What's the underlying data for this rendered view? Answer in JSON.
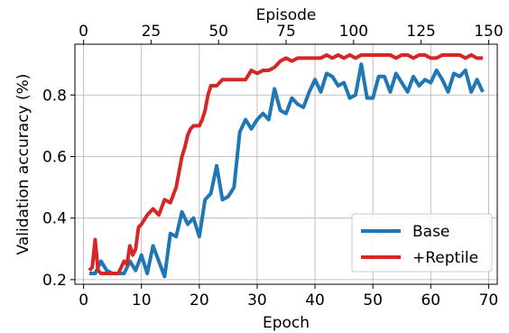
{
  "chart_data": {
    "type": "line",
    "xlabel": "Epoch",
    "ylabel": "Validation accuracy (%)",
    "x2label": "Episode",
    "xlim": [
      -1.5,
      71.5
    ],
    "ylim": [
      0.185,
      0.965
    ],
    "x2lim": [
      -3.2,
      153.2
    ],
    "xticks": [
      0,
      10,
      20,
      30,
      40,
      50,
      60,
      70
    ],
    "yticks": [
      0.2,
      0.4,
      0.6,
      0.8
    ],
    "x2ticks": [
      0,
      25,
      50,
      75,
      100,
      125,
      150
    ],
    "grid": true,
    "legend_position": "lower-right",
    "series": [
      {
        "name": "Base",
        "color": "#1f77b4",
        "x": [
          1,
          2,
          3,
          4,
          5,
          6,
          7,
          8,
          9,
          10,
          11,
          12,
          13,
          14,
          15,
          16,
          17,
          18,
          19,
          20,
          21,
          22,
          23,
          24,
          25,
          26,
          27,
          28,
          29,
          30,
          31,
          32,
          33,
          34,
          35,
          36,
          37,
          38,
          39,
          40,
          41,
          42,
          43,
          44,
          45,
          46,
          47,
          48,
          49,
          50,
          51,
          52,
          53,
          54,
          55,
          56,
          57,
          58,
          59,
          60,
          61,
          62,
          63,
          64,
          65,
          66,
          67,
          68,
          69
        ],
        "values": [
          0.22,
          0.22,
          0.26,
          0.23,
          0.22,
          0.22,
          0.22,
          0.26,
          0.23,
          0.28,
          0.22,
          0.31,
          0.26,
          0.21,
          0.35,
          0.34,
          0.42,
          0.38,
          0.4,
          0.34,
          0.46,
          0.48,
          0.57,
          0.46,
          0.47,
          0.5,
          0.68,
          0.72,
          0.69,
          0.72,
          0.74,
          0.72,
          0.82,
          0.75,
          0.74,
          0.79,
          0.77,
          0.76,
          0.81,
          0.85,
          0.81,
          0.87,
          0.86,
          0.83,
          0.84,
          0.79,
          0.8,
          0.9,
          0.79,
          0.79,
          0.86,
          0.86,
          0.81,
          0.87,
          0.84,
          0.81,
          0.86,
          0.83,
          0.85,
          0.84,
          0.88,
          0.85,
          0.81,
          0.87,
          0.86,
          0.88,
          0.81,
          0.85,
          0.81
        ]
      },
      {
        "name": "+Reptile",
        "color": "#d62728",
        "x": [
          1,
          1.5,
          2,
          2.5,
          3,
          4,
          5,
          6,
          7,
          7.5,
          8,
          8.5,
          9,
          9.5,
          10,
          11,
          12,
          13,
          14,
          15,
          16,
          17,
          17.5,
          18,
          18.5,
          19,
          20,
          20.5,
          21,
          21.5,
          22,
          23,
          24,
          25,
          26,
          27,
          28,
          29,
          30,
          31,
          32,
          33,
          34,
          35,
          36,
          37,
          38,
          39,
          40,
          41,
          42,
          43,
          44,
          45,
          46,
          47,
          48,
          49,
          50,
          51,
          52,
          53,
          54,
          55,
          56,
          57,
          58,
          59,
          60,
          61,
          62,
          63,
          64,
          65,
          66,
          67,
          68,
          69
        ],
        "values": [
          0.23,
          0.24,
          0.33,
          0.23,
          0.22,
          0.22,
          0.22,
          0.22,
          0.26,
          0.25,
          0.31,
          0.28,
          0.3,
          0.37,
          0.38,
          0.41,
          0.43,
          0.41,
          0.46,
          0.45,
          0.5,
          0.6,
          0.63,
          0.67,
          0.69,
          0.7,
          0.7,
          0.72,
          0.75,
          0.8,
          0.83,
          0.83,
          0.85,
          0.85,
          0.85,
          0.85,
          0.85,
          0.88,
          0.87,
          0.88,
          0.88,
          0.89,
          0.91,
          0.92,
          0.91,
          0.92,
          0.92,
          0.92,
          0.92,
          0.92,
          0.93,
          0.92,
          0.93,
          0.92,
          0.93,
          0.92,
          0.93,
          0.93,
          0.93,
          0.93,
          0.93,
          0.93,
          0.92,
          0.93,
          0.93,
          0.92,
          0.93,
          0.93,
          0.92,
          0.92,
          0.93,
          0.93,
          0.93,
          0.93,
          0.92,
          0.93,
          0.92,
          0.92
        ]
      }
    ]
  }
}
